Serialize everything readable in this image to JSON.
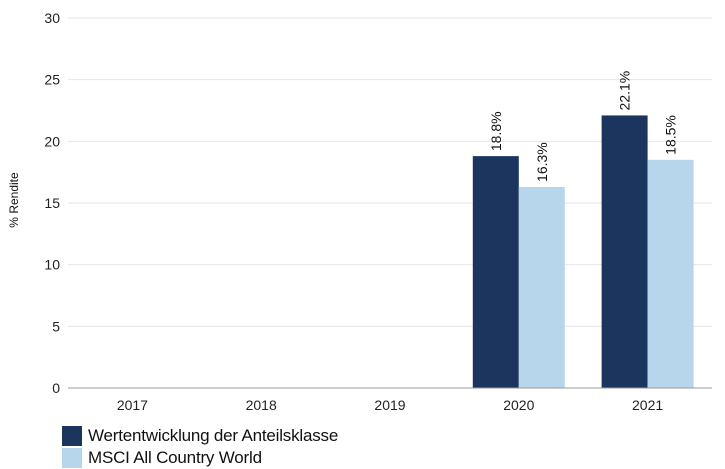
{
  "chart_data": {
    "type": "bar",
    "categories": [
      "2017",
      "2018",
      "2019",
      "2020",
      "2021"
    ],
    "series": [
      {
        "name": "Wertentwicklung der Anteilsklasse",
        "color": "#1b355e",
        "values": [
          null,
          null,
          null,
          18.8,
          22.1
        ],
        "labels": [
          "",
          "",
          "",
          "18.8%",
          "22.1%"
        ]
      },
      {
        "name": "MSCI All Country World",
        "color": "#b7d6ec",
        "values": [
          null,
          null,
          null,
          16.3,
          18.5
        ],
        "labels": [
          "",
          "",
          "",
          "16.3%",
          "18.5%"
        ]
      }
    ],
    "ylabel": "% Rendite",
    "ylim": [
      0,
      30
    ],
    "yticks": [
      0,
      5,
      10,
      15,
      20,
      25,
      30
    ],
    "grid": true,
    "legend_position": "bottom-left"
  }
}
